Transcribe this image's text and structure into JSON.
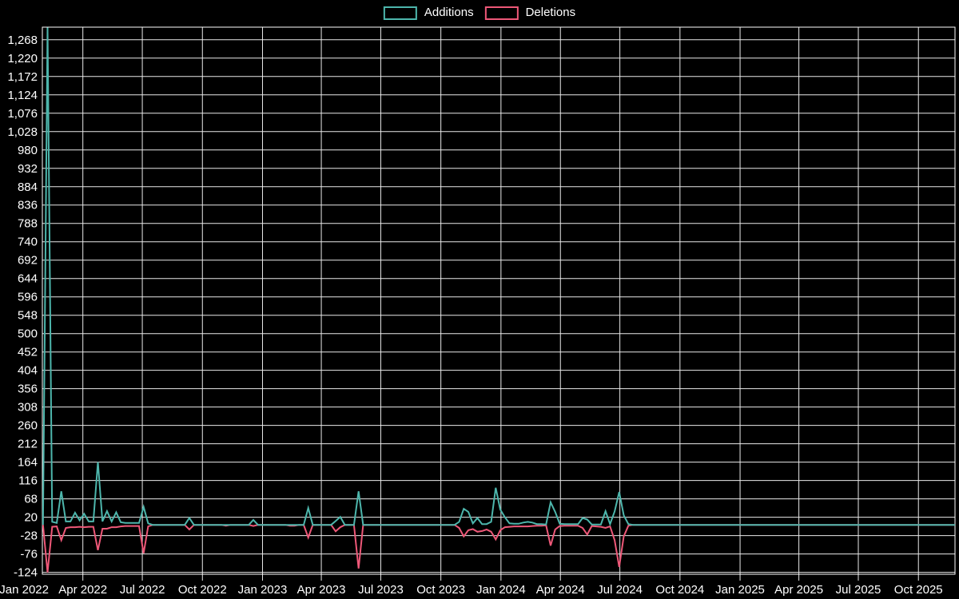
{
  "page": {
    "background": "#000000"
  },
  "legend": {
    "items": [
      {
        "label": "Additions",
        "color": "#4db6ac"
      },
      {
        "label": "Deletions",
        "color": "#ee5878"
      }
    ]
  },
  "chart_data": {
    "type": "line",
    "title": "",
    "xlabel": "",
    "ylabel": "",
    "grid": true,
    "legend_position": "top-center",
    "colors": {
      "background": "#000000",
      "grid": "#e9e9e9",
      "frame": "#ffffff",
      "text": "#ffffff",
      "additions": "#4db6ac",
      "deletions": "#ee5878"
    },
    "x_axis": {
      "start": "2022-01-29",
      "end": "2025-11-26",
      "ticks": [
        [
          "2022-01-01",
          "Jan 2022"
        ],
        [
          "2022-04-01",
          "Apr 2022"
        ],
        [
          "2022-07-01",
          "Jul 2022"
        ],
        [
          "2022-10-01",
          "Oct 2022"
        ],
        [
          "2023-01-01",
          "Jan 2023"
        ],
        [
          "2023-04-01",
          "Apr 2023"
        ],
        [
          "2023-07-01",
          "Jul 2023"
        ],
        [
          "2023-10-01",
          "Oct 2023"
        ],
        [
          "2024-01-01",
          "Jan 2024"
        ],
        [
          "2024-04-01",
          "Apr 2024"
        ],
        [
          "2024-07-01",
          "Jul 2024"
        ],
        [
          "2024-10-01",
          "Oct 2024"
        ],
        [
          "2025-01-01",
          "Jan 2025"
        ],
        [
          "2025-04-01",
          "Apr 2025"
        ],
        [
          "2025-07-01",
          "Jul 2025"
        ],
        [
          "2025-10-01",
          "Oct 2025"
        ]
      ]
    },
    "y_axis": {
      "min": -129,
      "max": 1301,
      "tick_step": 48,
      "tick_values": [
        -124,
        -76,
        -28,
        20,
        68,
        116,
        164,
        212,
        260,
        308,
        356,
        404,
        452,
        500,
        548,
        596,
        644,
        692,
        740,
        788,
        836,
        884,
        932,
        980,
        1028,
        1076,
        1124,
        1172,
        1220,
        1268
      ],
      "tick_labels": [
        "-124",
        "-76",
        "-28",
        "20",
        "68",
        "116",
        "164",
        "212",
        "260",
        "308",
        "356",
        "404",
        "452",
        "500",
        "548",
        "596",
        "644",
        "692",
        "740",
        "788",
        "836",
        "884",
        "932",
        "980",
        "1,028",
        "1,076",
        "1,124",
        "1,172",
        "1,220",
        "1,268"
      ]
    },
    "series": [
      {
        "name": "Additions",
        "color": "#4db6ac"
      },
      {
        "name": "Deletions",
        "color": "#ee5878"
      }
    ],
    "weekly": {
      "comment": "weekly points [date, additions, deletions]; all weeks not listed are [0,0]",
      "start": "2022-01-30",
      "end": "2025-11-23",
      "interval_days": 7,
      "default": [
        0,
        0
      ],
      "nonzero": [
        [
          "2022-02-06",
          1300,
          -124
        ],
        [
          "2022-02-13",
          8,
          -5
        ],
        [
          "2022-02-20",
          5,
          -4
        ],
        [
          "2022-02-27",
          88,
          -40
        ],
        [
          "2022-03-06",
          9,
          -8
        ],
        [
          "2022-03-13",
          9,
          -6
        ],
        [
          "2022-03-20",
          32,
          -6
        ],
        [
          "2022-03-27",
          12,
          -5
        ],
        [
          "2022-04-03",
          29,
          -6
        ],
        [
          "2022-04-10",
          9,
          -5
        ],
        [
          "2022-04-17",
          9,
          -5
        ],
        [
          "2022-04-24",
          164,
          -66
        ],
        [
          "2022-05-01",
          9,
          -10
        ],
        [
          "2022-05-08",
          36,
          -10
        ],
        [
          "2022-05-15",
          9,
          -6
        ],
        [
          "2022-05-22",
          33,
          -6
        ],
        [
          "2022-05-29",
          7,
          -4
        ],
        [
          "2022-06-05",
          5,
          -3
        ],
        [
          "2022-06-12",
          5,
          -3
        ],
        [
          "2022-06-19",
          5,
          -3
        ],
        [
          "2022-06-26",
          5,
          -3
        ],
        [
          "2022-07-03",
          47,
          -74
        ],
        [
          "2022-07-10",
          4,
          -4
        ],
        [
          "2022-09-11",
          18,
          -12
        ],
        [
          "2022-11-06",
          0,
          -2
        ],
        [
          "2022-12-18",
          13,
          -3
        ],
        [
          "2023-02-12",
          0,
          -2
        ],
        [
          "2023-02-19",
          0,
          -2
        ],
        [
          "2023-03-12",
          44,
          -33
        ],
        [
          "2023-04-23",
          10,
          -17
        ],
        [
          "2023-04-30",
          21,
          -6
        ],
        [
          "2023-05-28",
          88,
          -114
        ],
        [
          "2023-10-29",
          8,
          -8
        ],
        [
          "2023-11-05",
          42,
          -30
        ],
        [
          "2023-11-12",
          34,
          -14
        ],
        [
          "2023-11-19",
          4,
          -11
        ],
        [
          "2023-11-26",
          18,
          -18
        ],
        [
          "2023-12-03",
          2,
          -16
        ],
        [
          "2023-12-10",
          2,
          -12
        ],
        [
          "2023-12-17",
          8,
          -18
        ],
        [
          "2023-12-24",
          97,
          -38
        ],
        [
          "2023-12-31",
          40,
          -14
        ],
        [
          "2024-01-07",
          20,
          -6
        ],
        [
          "2024-01-14",
          4,
          -5
        ],
        [
          "2024-01-21",
          3,
          -4
        ],
        [
          "2024-01-28",
          3,
          -4
        ],
        [
          "2024-02-04",
          6,
          -4
        ],
        [
          "2024-02-11",
          8,
          -4
        ],
        [
          "2024-02-18",
          6,
          -3
        ],
        [
          "2024-02-25",
          2,
          -2
        ],
        [
          "2024-03-03",
          2,
          -2
        ],
        [
          "2024-03-10",
          1,
          -1
        ],
        [
          "2024-03-17",
          59,
          -54
        ],
        [
          "2024-03-24",
          34,
          -12
        ],
        [
          "2024-03-31",
          3,
          -3
        ],
        [
          "2024-04-07",
          2,
          -2
        ],
        [
          "2024-04-14",
          2,
          -2
        ],
        [
          "2024-04-21",
          2,
          -2
        ],
        [
          "2024-04-28",
          2,
          -2
        ],
        [
          "2024-05-05",
          18,
          -8
        ],
        [
          "2024-05-12",
          14,
          -25
        ],
        [
          "2024-05-19",
          1,
          -3
        ],
        [
          "2024-05-26",
          1,
          -4
        ],
        [
          "2024-06-02",
          1,
          -5
        ],
        [
          "2024-06-09",
          36,
          -8
        ],
        [
          "2024-06-16",
          2,
          -4
        ],
        [
          "2024-06-23",
          35,
          -40
        ],
        [
          "2024-06-30",
          86,
          -110
        ],
        [
          "2024-07-07",
          25,
          -30
        ],
        [
          "2024-07-14",
          2,
          -2
        ]
      ]
    }
  }
}
